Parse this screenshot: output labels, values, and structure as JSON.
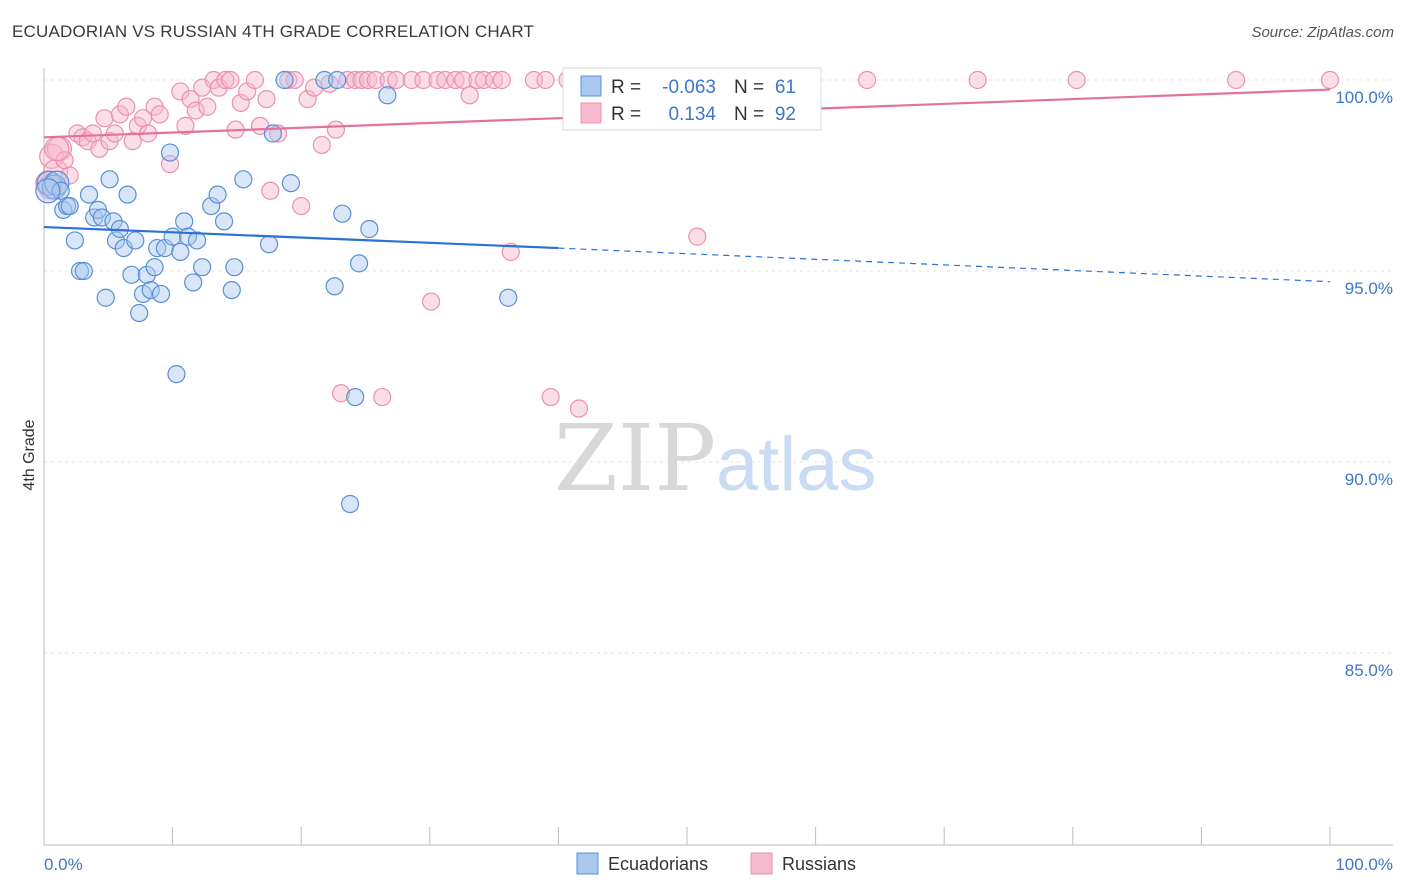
{
  "title": "ECUADORIAN VS RUSSIAN 4TH GRADE CORRELATION CHART",
  "source": "Source: ZipAtlas.com",
  "colors": {
    "blue_fill": "#a9c8f0",
    "blue_stroke": "#5a8fd6",
    "blue_line": "#2a72d4",
    "pink_fill": "#f7b9cd",
    "pink_stroke": "#ec90b0",
    "pink_line": "#e3739b",
    "axis_label": "#3b78c9",
    "grid": "#e3e3e3"
  },
  "chart_data": {
    "type": "scatter",
    "xlabel": "",
    "ylabel": "4th Grade",
    "xlim": [
      0,
      100
    ],
    "ylim": [
      80.5,
      100.8
    ],
    "x_tick_labels": [
      "0.0%",
      "100.0%"
    ],
    "y_ticks": [
      85,
      90,
      95,
      100
    ],
    "y_tick_labels": [
      "85.0%",
      "90.0%",
      "95.0%",
      "100.0%"
    ],
    "watermark": {
      "zip": "ZIP",
      "atlas": "atlas"
    },
    "legend": [
      {
        "name": "Ecuadorians",
        "r_label": "R =",
        "r_value": "-0.063",
        "n_label": "N =",
        "n_value": "61"
      },
      {
        "name": "Russians",
        "r_label": "R =",
        "r_value": "0.134",
        "n_label": "N =",
        "n_value": "92"
      }
    ],
    "series": [
      {
        "name": "Ecuadorians",
        "color": "blue",
        "trend": {
          "x0": 0,
          "y0": 96.15,
          "x1": 40,
          "y1": 95.6,
          "dash_to_x": 100,
          "dash_to_y": 94.72
        },
        "points": [
          [
            0.4,
            97.3
          ],
          [
            0.8,
            97.2
          ],
          [
            1.0,
            97.3
          ],
          [
            1.3,
            97.1
          ],
          [
            1.5,
            96.6
          ],
          [
            1.8,
            96.7
          ],
          [
            2.0,
            96.7
          ],
          [
            2.4,
            95.8
          ],
          [
            2.8,
            95.0
          ],
          [
            3.1,
            95.0
          ],
          [
            3.5,
            97.0
          ],
          [
            3.9,
            96.4
          ],
          [
            4.2,
            96.6
          ],
          [
            4.5,
            96.4
          ],
          [
            4.8,
            94.3
          ],
          [
            5.1,
            97.4
          ],
          [
            5.4,
            96.3
          ],
          [
            5.6,
            95.8
          ],
          [
            5.9,
            96.1
          ],
          [
            6.2,
            95.6
          ],
          [
            6.5,
            97.0
          ],
          [
            6.8,
            94.9
          ],
          [
            7.1,
            95.8
          ],
          [
            7.4,
            93.9
          ],
          [
            7.7,
            94.4
          ],
          [
            8.0,
            94.9
          ],
          [
            8.3,
            94.5
          ],
          [
            8.6,
            95.1
          ],
          [
            8.8,
            95.6
          ],
          [
            9.1,
            94.4
          ],
          [
            9.4,
            95.6
          ],
          [
            9.8,
            98.1
          ],
          [
            10.0,
            95.9
          ],
          [
            10.3,
            92.3
          ],
          [
            10.6,
            95.5
          ],
          [
            10.9,
            96.3
          ],
          [
            11.2,
            95.9
          ],
          [
            11.6,
            94.7
          ],
          [
            11.9,
            95.8
          ],
          [
            12.3,
            95.1
          ],
          [
            13.0,
            96.7
          ],
          [
            13.5,
            97.0
          ],
          [
            14.0,
            96.3
          ],
          [
            14.6,
            94.5
          ],
          [
            14.8,
            95.1
          ],
          [
            15.5,
            97.4
          ],
          [
            17.5,
            95.7
          ],
          [
            17.8,
            98.6
          ],
          [
            18.7,
            100.0
          ],
          [
            19.2,
            97.3
          ],
          [
            21.8,
            100.0
          ],
          [
            22.8,
            100.0
          ],
          [
            22.6,
            94.6
          ],
          [
            23.2,
            96.5
          ],
          [
            23.8,
            88.9
          ],
          [
            24.2,
            91.7
          ],
          [
            24.5,
            95.2
          ],
          [
            25.3,
            96.1
          ],
          [
            26.7,
            99.6
          ],
          [
            36.1,
            94.3
          ],
          [
            0.3,
            97.1
          ]
        ]
      },
      {
        "name": "Russians",
        "color": "pink",
        "trend": {
          "x0": 0,
          "y0": 98.5,
          "x1": 100,
          "y1": 99.75
        },
        "points": [
          [
            0.3,
            97.3
          ],
          [
            0.6,
            98.0
          ],
          [
            0.9,
            97.6
          ],
          [
            1.2,
            98.2
          ],
          [
            1.6,
            97.9
          ],
          [
            2.0,
            97.5
          ],
          [
            2.6,
            98.6
          ],
          [
            3.0,
            98.5
          ],
          [
            3.4,
            98.4
          ],
          [
            3.8,
            98.6
          ],
          [
            4.3,
            98.2
          ],
          [
            4.7,
            99.0
          ],
          [
            5.1,
            98.4
          ],
          [
            5.5,
            98.6
          ],
          [
            5.9,
            99.1
          ],
          [
            6.4,
            99.3
          ],
          [
            6.9,
            98.4
          ],
          [
            7.3,
            98.8
          ],
          [
            7.7,
            99.0
          ],
          [
            8.1,
            98.6
          ],
          [
            8.6,
            99.3
          ],
          [
            9.0,
            99.1
          ],
          [
            9.8,
            97.8
          ],
          [
            10.6,
            99.7
          ],
          [
            11.0,
            98.8
          ],
          [
            11.4,
            99.5
          ],
          [
            11.8,
            99.2
          ],
          [
            12.3,
            99.8
          ],
          [
            12.7,
            99.3
          ],
          [
            13.2,
            100.0
          ],
          [
            13.6,
            99.8
          ],
          [
            14.1,
            100.0
          ],
          [
            14.5,
            100.0
          ],
          [
            14.9,
            98.7
          ],
          [
            15.3,
            99.4
          ],
          [
            15.8,
            99.7
          ],
          [
            16.4,
            100.0
          ],
          [
            16.8,
            98.8
          ],
          [
            17.3,
            99.5
          ],
          [
            17.6,
            97.1
          ],
          [
            18.2,
            98.6
          ],
          [
            19.0,
            100.0
          ],
          [
            19.5,
            100.0
          ],
          [
            20.0,
            96.7
          ],
          [
            20.5,
            99.5
          ],
          [
            21.0,
            99.8
          ],
          [
            21.6,
            98.3
          ],
          [
            22.2,
            99.9
          ],
          [
            22.7,
            98.7
          ],
          [
            23.1,
            91.8
          ],
          [
            23.6,
            100.0
          ],
          [
            24.2,
            100.0
          ],
          [
            24.7,
            100.0
          ],
          [
            25.2,
            100.0
          ],
          [
            25.8,
            100.0
          ],
          [
            26.3,
            91.7
          ],
          [
            26.8,
            100.0
          ],
          [
            27.4,
            100.0
          ],
          [
            28.6,
            100.0
          ],
          [
            29.5,
            100.0
          ],
          [
            30.1,
            94.2
          ],
          [
            30.6,
            100.0
          ],
          [
            31.2,
            100.0
          ],
          [
            32.0,
            100.0
          ],
          [
            32.6,
            100.0
          ],
          [
            33.1,
            99.6
          ],
          [
            33.7,
            100.0
          ],
          [
            34.2,
            100.0
          ],
          [
            35.0,
            100.0
          ],
          [
            35.6,
            100.0
          ],
          [
            36.3,
            95.5
          ],
          [
            38.1,
            100.0
          ],
          [
            39.0,
            100.0
          ],
          [
            39.4,
            91.7
          ],
          [
            40.7,
            100.0
          ],
          [
            41.6,
            91.4
          ],
          [
            43.4,
            100.0
          ],
          [
            45.2,
            100.0
          ],
          [
            47.3,
            100.0
          ],
          [
            49.4,
            100.0
          ],
          [
            50.8,
            95.9
          ],
          [
            52.1,
            100.0
          ],
          [
            54.6,
            100.0
          ],
          [
            59.5,
            100.0
          ],
          [
            64.0,
            100.0
          ],
          [
            72.6,
            100.0
          ],
          [
            80.3,
            100.0
          ],
          [
            92.7,
            100.0
          ],
          [
            100.0,
            100.0
          ],
          [
            45.8,
            100.0
          ],
          [
            0.5,
            97.2
          ],
          [
            1.0,
            98.2
          ]
        ]
      }
    ]
  },
  "bottom_legend": {
    "ecuadorians": "Ecuadorians",
    "russians": "Russians"
  }
}
